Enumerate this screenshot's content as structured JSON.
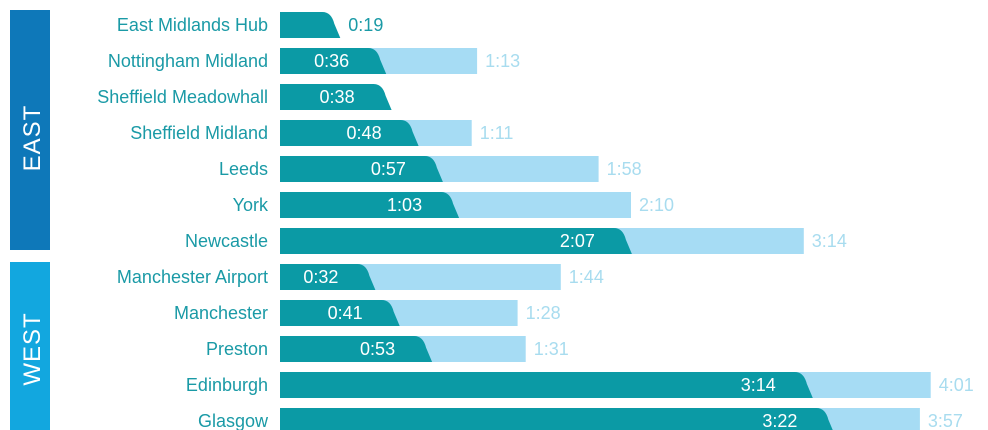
{
  "colors": {
    "east_band": "#0e78b9",
    "west_band": "#12a7df",
    "hs2_bar": "#0b9aa5",
    "current_bar": "#a6dcf4",
    "station_text": "#1a9aa6",
    "current_text": "#a8dcef"
  },
  "chart_data": {
    "type": "bar",
    "orientation": "horizontal",
    "value_unit": "h:mm",
    "groups": [
      {
        "name": "EAST",
        "stations": [
          "East Midlands Hub",
          "Nottingham Midland",
          "Sheffield Meadowhall",
          "Sheffield Midland",
          "Leeds",
          "York",
          "Newcastle"
        ]
      },
      {
        "name": "WEST",
        "stations": [
          "Manchester Airport",
          "Manchester",
          "Preston",
          "Edinburgh",
          "Glasgow"
        ]
      }
    ],
    "categories": [
      "East Midlands Hub",
      "Nottingham Midland",
      "Sheffield Meadowhall",
      "Sheffield Midland",
      "Leeds",
      "York",
      "Newcastle",
      "Manchester Airport",
      "Manchester",
      "Preston",
      "Edinburgh",
      "Glasgow"
    ],
    "series": [
      {
        "key": "hs2",
        "labels": [
          "0:19",
          "0:36",
          "0:38",
          "0:48",
          "0:57",
          "1:03",
          "2:07",
          "0:32",
          "0:41",
          "0:53",
          "3:14",
          "3:22"
        ],
        "minutes": [
          19,
          36,
          38,
          48,
          57,
          63,
          127,
          32,
          41,
          53,
          194,
          202
        ]
      },
      {
        "key": "current",
        "labels": [
          null,
          "1:13",
          null,
          "1:11",
          "1:58",
          "2:10",
          "3:14",
          "1:44",
          "1:28",
          "1:31",
          "4:01",
          "3:57"
        ],
        "minutes": [
          null,
          73,
          null,
          71,
          118,
          130,
          194,
          104,
          88,
          91,
          241,
          237
        ]
      }
    ],
    "xlim": [
      0,
      241
    ]
  }
}
